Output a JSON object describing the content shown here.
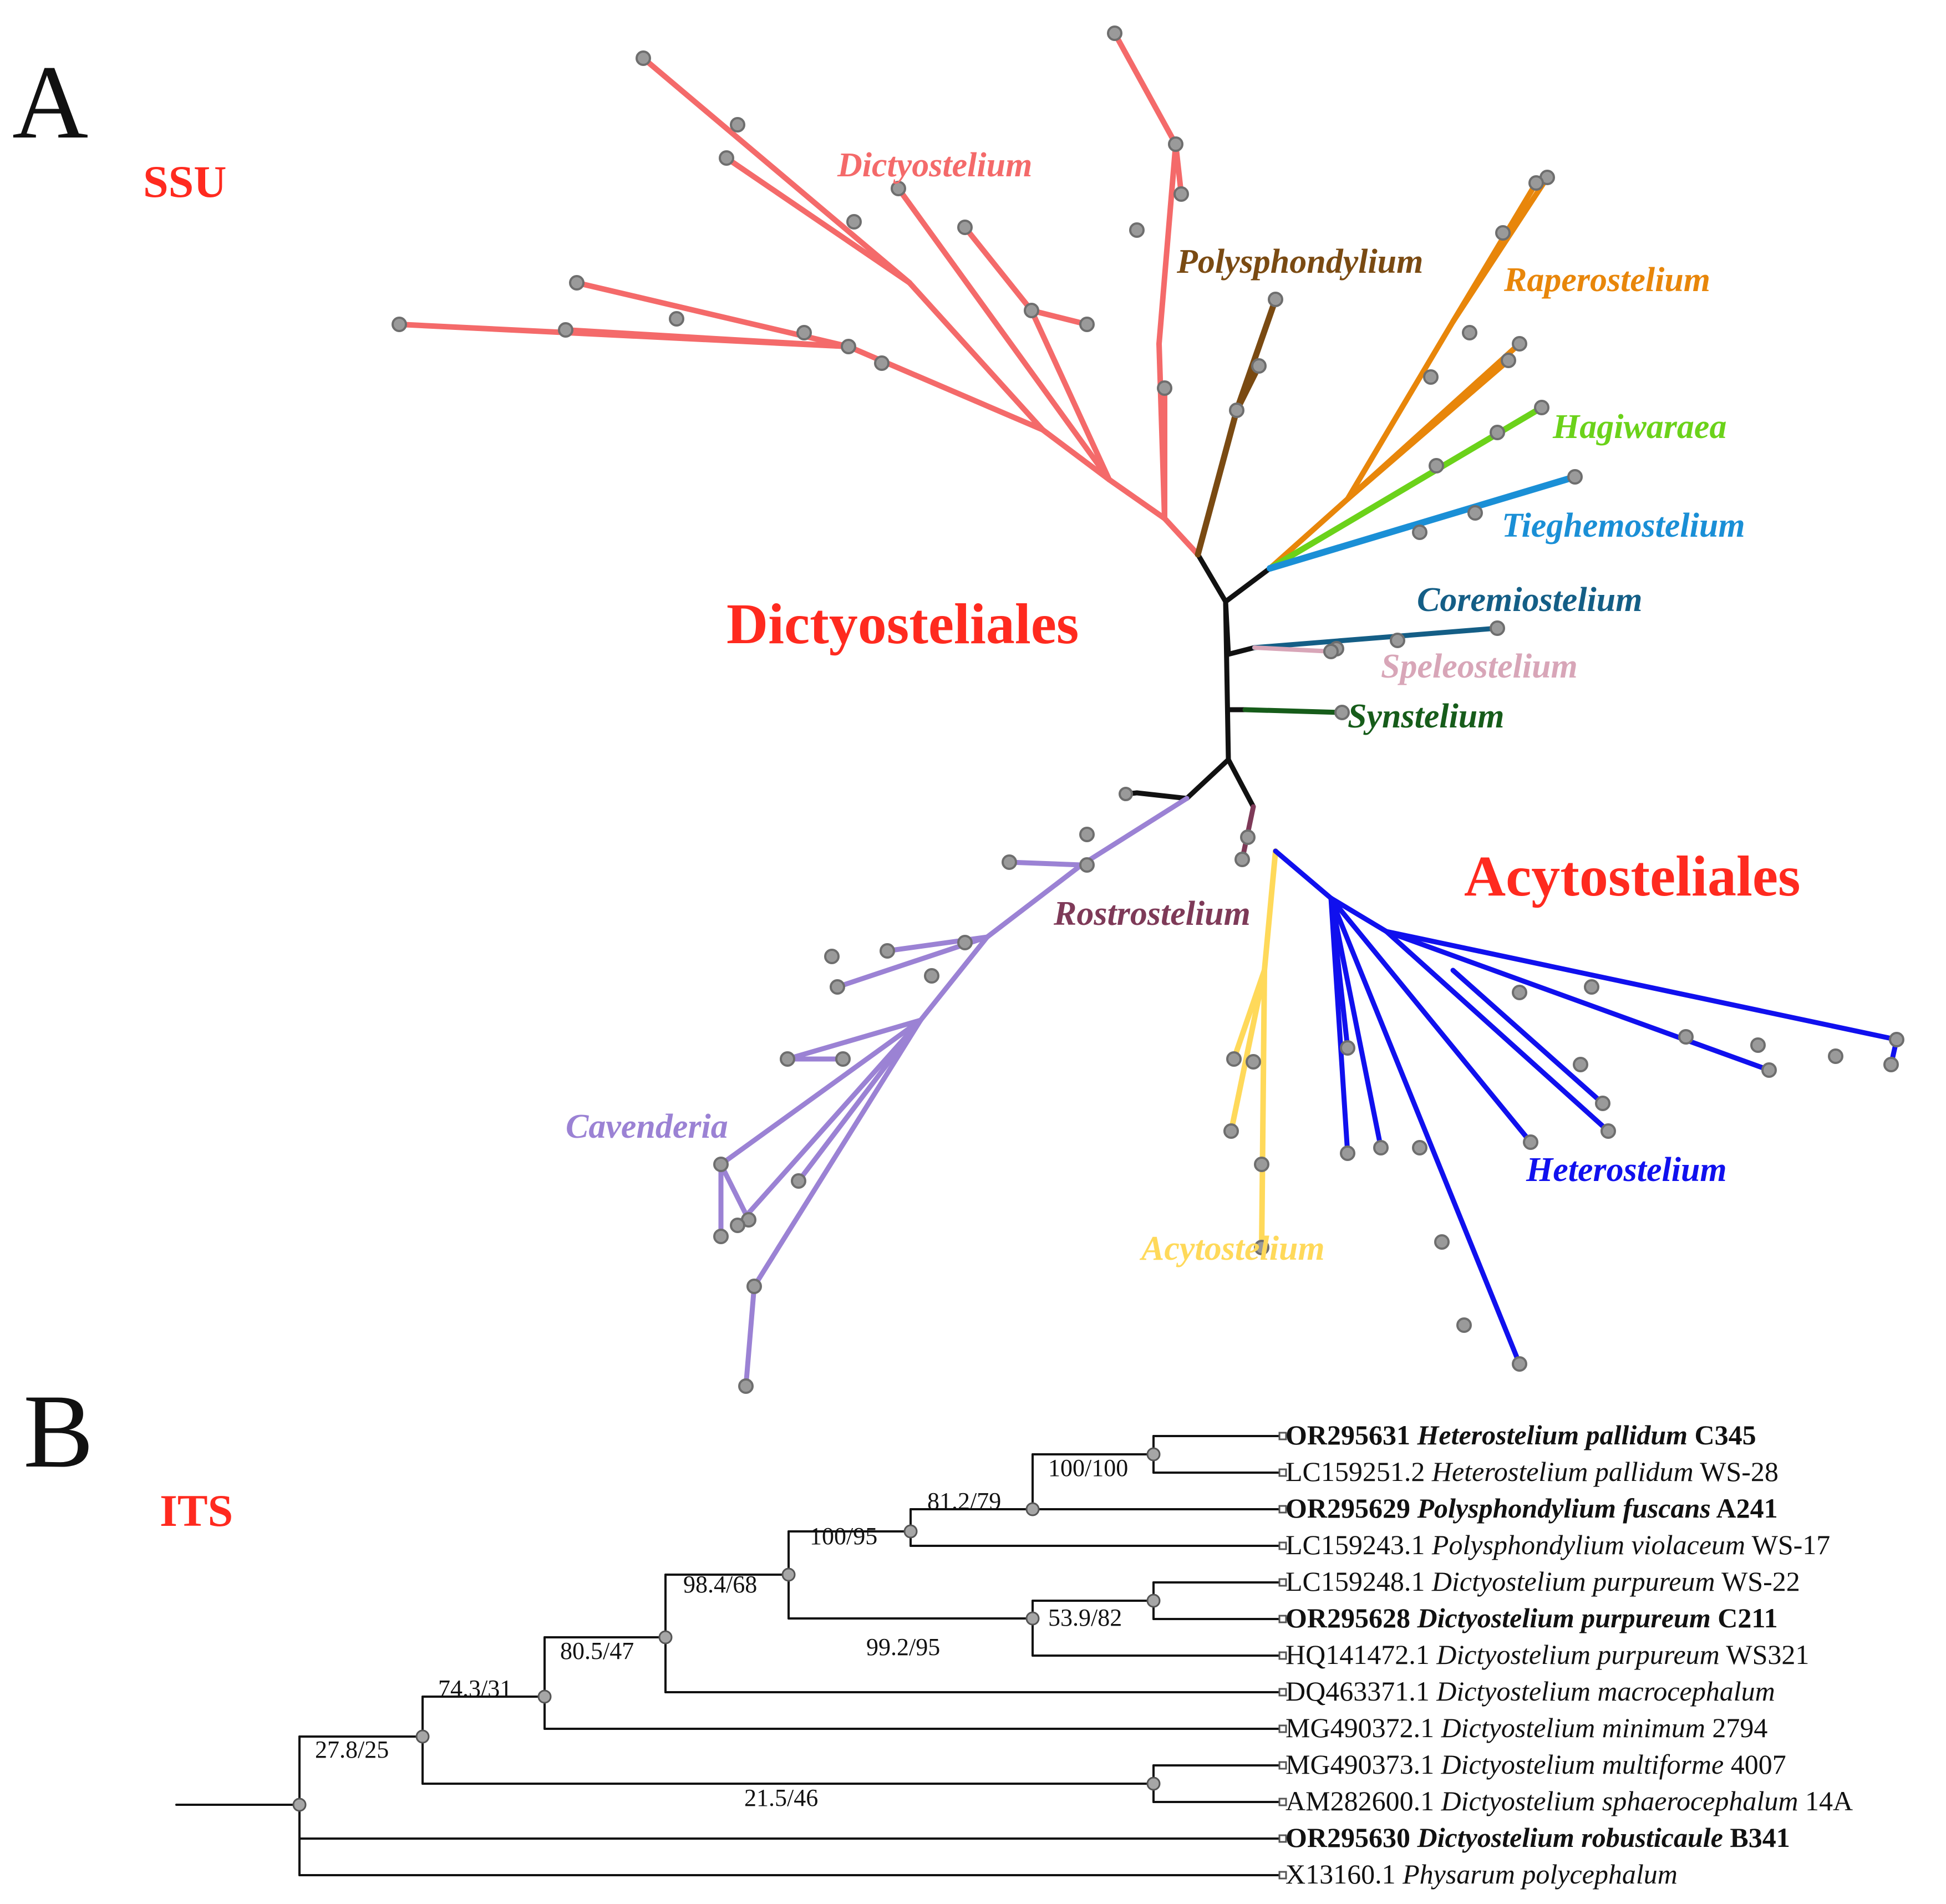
{
  "panel_a": {
    "letter": "A",
    "title": "SSU",
    "orders": {
      "dictyosteliales": "Dictyosteliales",
      "acytosteliales": "Acytosteliales"
    },
    "genera": [
      {
        "key": "dictyostelium",
        "name": "Dictyostelium",
        "color": "#f46a6a"
      },
      {
        "key": "polysphondylium",
        "name": "Polysphondylium",
        "color": "#7a4a12"
      },
      {
        "key": "raperostelium",
        "name": "Raperostelium",
        "color": "#e8860a"
      },
      {
        "key": "hagiwaraea",
        "name": "Hagiwaraea",
        "color": "#6bd21a"
      },
      {
        "key": "tieghemostelium",
        "name": "Tieghemostelium",
        "color": "#1a8fd6"
      },
      {
        "key": "coremiostelium",
        "name": "Coremiostelium",
        "color": "#145e86"
      },
      {
        "key": "speleostelium",
        "name": "Speleostelium",
        "color": "#d8a6b8"
      },
      {
        "key": "synstelium",
        "name": "Synstelium",
        "color": "#165c1a"
      },
      {
        "key": "rostrostelium",
        "name": "Rostrostelium",
        "color": "#7e3a58"
      },
      {
        "key": "cavenderia",
        "name": "Cavenderia",
        "color": "#9b82d4"
      },
      {
        "key": "acytostelium",
        "name": "Acytostelium",
        "color": "#ffd95a"
      },
      {
        "key": "heterostelium",
        "name": "Heterostelium",
        "color": "#1010ee"
      }
    ]
  },
  "panel_b": {
    "letter": "B",
    "title": "ITS",
    "tips": [
      {
        "accession": "OR295631",
        "species": "Heterostelium pallidum",
        "strain": "C345",
        "bold": true
      },
      {
        "accession": "LC159251.2",
        "species": "Heterostelium pallidum",
        "strain": "WS-28",
        "bold": false
      },
      {
        "accession": "OR295629",
        "species": "Polysphondylium fuscans",
        "strain": "A241",
        "bold": true
      },
      {
        "accession": "LC159243.1",
        "species": "Polysphondylium violaceum",
        "strain": "WS-17",
        "bold": false
      },
      {
        "accession": "LC159248.1",
        "species": "Dictyostelium purpureum",
        "strain": "WS-22",
        "bold": false
      },
      {
        "accession": "OR295628",
        "species": "Dictyostelium purpureum",
        "strain": "C211",
        "bold": true
      },
      {
        "accession": "HQ141472.1",
        "species": "Dictyostelium purpureum",
        "strain": "WS321",
        "bold": false
      },
      {
        "accession": "DQ463371.1",
        "species": "Dictyostelium macrocephalum",
        "strain": "",
        "bold": false
      },
      {
        "accession": "MG490372.1",
        "species": "Dictyostelium minimum",
        "strain": "2794",
        "bold": false
      },
      {
        "accession": "MG490373.1",
        "species": "Dictyostelium multiforme",
        "strain": "4007",
        "bold": false
      },
      {
        "accession": "AM282600.1",
        "species": "Dictyostelium sphaerocephalum",
        "strain": "14A",
        "bold": false
      },
      {
        "accession": "OR295630",
        "species": "Dictyostelium robusticaule",
        "strain": "B341",
        "bold": true
      },
      {
        "accession": "X13160.1",
        "species": "Physarum polycephalum",
        "strain": "",
        "bold": false
      }
    ],
    "supports": {
      "heterostelium_pair": "100/100",
      "polysphondylium_group": "81.2/79",
      "dictyostelium_a_group": "100/95",
      "purpureum_clade": "99.2/95",
      "purpureum_pair": "53.9/82",
      "macrocephalum_node": "98.4/68",
      "minimum_node": "80.5/47",
      "multiforme_node": "74.3/31",
      "sphaerocephalum_pair": "21.5/46",
      "root": "27.8/25"
    }
  }
}
